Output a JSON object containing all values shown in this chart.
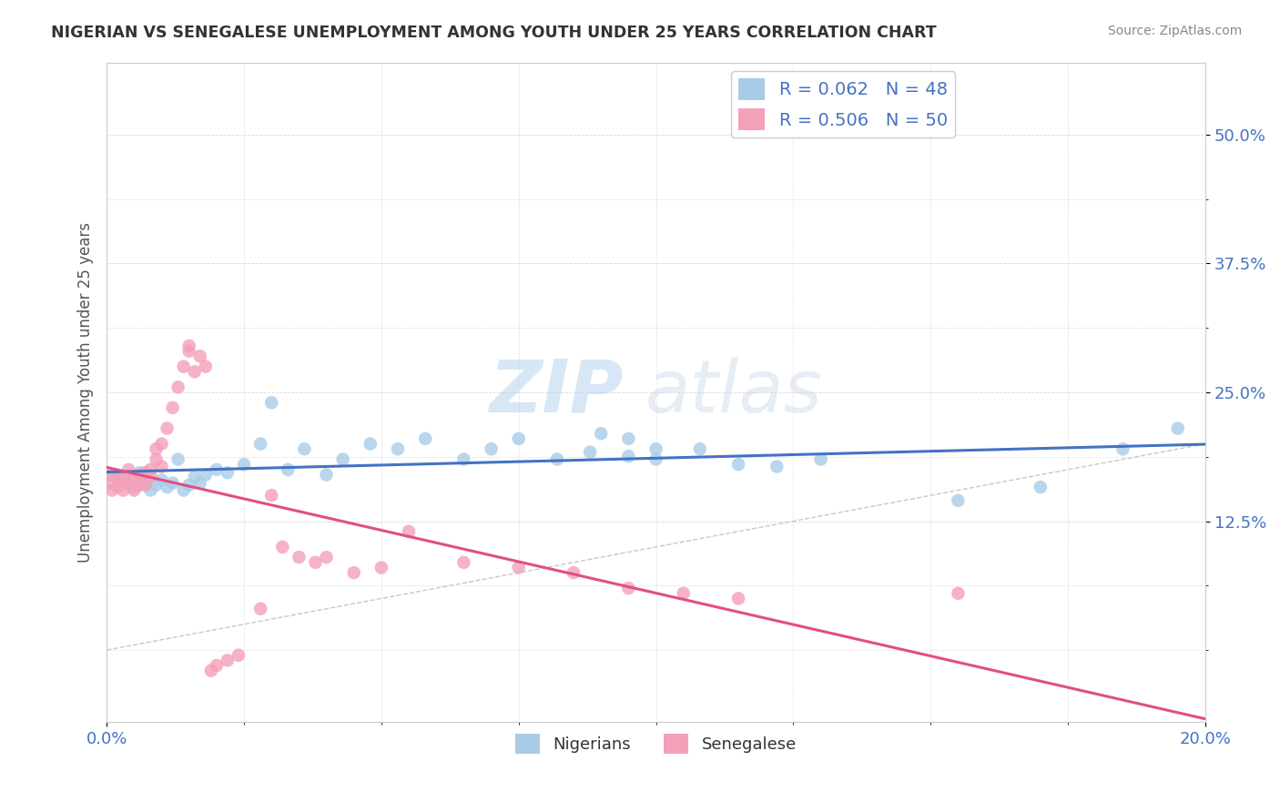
{
  "title": "NIGERIAN VS SENEGALESE UNEMPLOYMENT AMONG YOUTH UNDER 25 YEARS CORRELATION CHART",
  "source": "Source: ZipAtlas.com",
  "ylabel": "Unemployment Among Youth under 25 years",
  "xlim": [
    0.0,
    0.2
  ],
  "ylim": [
    -0.07,
    0.57
  ],
  "R_nigerian": 0.062,
  "N_nigerian": 48,
  "R_senegalese": 0.506,
  "N_senegalese": 50,
  "color_nigerian": "#a8cce8",
  "color_senegalese": "#f4a0b8",
  "color_nigerian_line": "#4472c4",
  "color_senegalese_line": "#e05080",
  "color_diagonal": "#c8c8c8",
  "watermark_zip": "ZIP",
  "watermark_atlas": "atlas",
  "background_color": "#ffffff",
  "nigerian_x": [
    0.001,
    0.002,
    0.003,
    0.004,
    0.005,
    0.006,
    0.007,
    0.008,
    0.009,
    0.01,
    0.011,
    0.012,
    0.013,
    0.014,
    0.015,
    0.016,
    0.017,
    0.018,
    0.02,
    0.022,
    0.025,
    0.028,
    0.03,
    0.033,
    0.036,
    0.04,
    0.043,
    0.048,
    0.053,
    0.058,
    0.065,
    0.07,
    0.075,
    0.082,
    0.088,
    0.095,
    0.1,
    0.108,
    0.115,
    0.122,
    0.09,
    0.095,
    0.1,
    0.13,
    0.155,
    0.17,
    0.185,
    0.195
  ],
  "nigerian_y": [
    0.17,
    0.168,
    0.165,
    0.16,
    0.158,
    0.172,
    0.162,
    0.155,
    0.16,
    0.165,
    0.158,
    0.162,
    0.185,
    0.155,
    0.16,
    0.168,
    0.162,
    0.17,
    0.175,
    0.172,
    0.18,
    0.2,
    0.24,
    0.175,
    0.195,
    0.17,
    0.185,
    0.2,
    0.195,
    0.205,
    0.185,
    0.195,
    0.205,
    0.185,
    0.192,
    0.188,
    0.195,
    0.195,
    0.18,
    0.178,
    0.21,
    0.205,
    0.185,
    0.185,
    0.145,
    0.158,
    0.195,
    0.215
  ],
  "senegalese_x": [
    0.001,
    0.001,
    0.001,
    0.002,
    0.002,
    0.003,
    0.003,
    0.004,
    0.004,
    0.005,
    0.005,
    0.006,
    0.006,
    0.007,
    0.007,
    0.008,
    0.008,
    0.009,
    0.009,
    0.01,
    0.01,
    0.011,
    0.012,
    0.013,
    0.014,
    0.015,
    0.015,
    0.016,
    0.017,
    0.018,
    0.019,
    0.02,
    0.022,
    0.024,
    0.028,
    0.03,
    0.032,
    0.035,
    0.038,
    0.04,
    0.045,
    0.05,
    0.055,
    0.065,
    0.075,
    0.085,
    0.095,
    0.105,
    0.115,
    0.155
  ],
  "senegalese_y": [
    0.155,
    0.162,
    0.17,
    0.158,
    0.168,
    0.155,
    0.165,
    0.162,
    0.175,
    0.155,
    0.165,
    0.16,
    0.17,
    0.172,
    0.16,
    0.175,
    0.168,
    0.195,
    0.185,
    0.2,
    0.178,
    0.215,
    0.235,
    0.255,
    0.275,
    0.295,
    0.29,
    0.27,
    0.285,
    0.275,
    -0.02,
    -0.015,
    -0.01,
    -0.005,
    0.04,
    0.15,
    0.1,
    0.09,
    0.085,
    0.09,
    0.075,
    0.08,
    0.115,
    0.085,
    0.08,
    0.075,
    0.06,
    0.055,
    0.05,
    0.055
  ]
}
